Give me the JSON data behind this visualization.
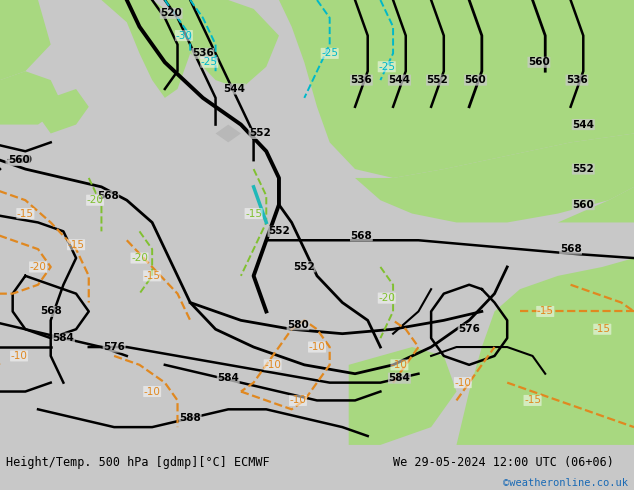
{
  "title_left": "Height/Temp. 500 hPa [gdmp][°C] ECMWF",
  "title_right": "We 29-05-2024 12:00 UTC (06+06)",
  "credit": "©weatheronline.co.uk",
  "bg_color": "#c8c8c8",
  "sea_color": "#c8c8c8",
  "land_gray": "#b8b8b8",
  "green_color": "#a8d880",
  "fig_width": 6.34,
  "fig_height": 4.9,
  "dpi": 100,
  "bottom_bar_color": "#e0e0e0",
  "text_color": "#000000",
  "credit_color": "#1a6ab5",
  "orange": "#e08820",
  "cyan": "#00b8c8",
  "lime": "#80c030"
}
